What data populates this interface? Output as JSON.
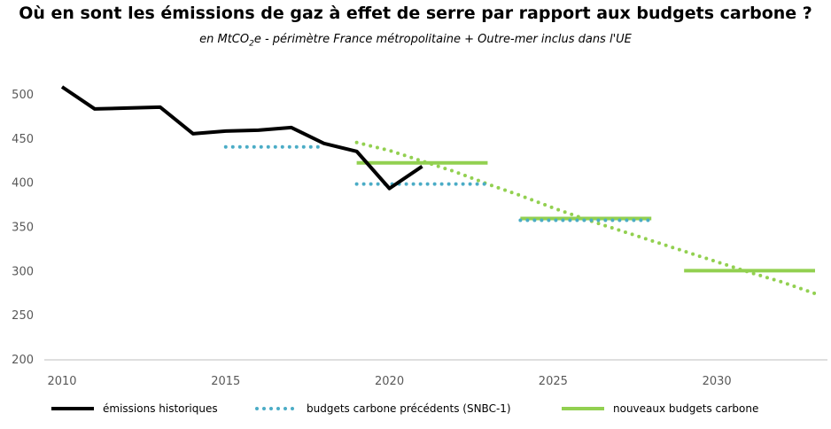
{
  "chart_data": {
    "type": "line",
    "title": "Où en sont les émissions de gaz à effet de serre par rapport aux budgets carbone ?",
    "subtitle_parts": [
      "en MtCO",
      "2",
      "e - périmètre France métropolitaine + Outre-mer inclus dans l'UE"
    ],
    "xlabel": "",
    "ylabel": "",
    "xlim": [
      2010,
      2033
    ],
    "ylim": [
      200,
      510
    ],
    "x_ticks": [
      2010,
      2015,
      2020,
      2025,
      2030
    ],
    "y_ticks": [
      200,
      250,
      300,
      350,
      400,
      450,
      500
    ],
    "grid": false,
    "legend_position": "bottom",
    "series": [
      {
        "name": "émissions historiques",
        "style": "solid",
        "color": "#000000",
        "x": [
          2010,
          2011,
          2012,
          2013,
          2014,
          2015,
          2016,
          2017,
          2018,
          2019,
          2020,
          2021
        ],
        "y": [
          508,
          483,
          484,
          485,
          455,
          458,
          459,
          462,
          444,
          435,
          393,
          418
        ]
      },
      {
        "name": "budgets carbone précédents (SNBC-1)",
        "style": "dotted",
        "color": "#4BACC6",
        "segments": [
          {
            "x": [
              2015,
              2018
            ],
            "y": [
              440,
              440
            ]
          },
          {
            "x": [
              2019,
              2023
            ],
            "y": [
              398,
              398
            ]
          },
          {
            "x": [
              2024,
              2028
            ],
            "y": [
              357,
              357
            ]
          }
        ]
      },
      {
        "name": "nouveaux budgets carbone",
        "style": "solid",
        "color": "#92D050",
        "segments": [
          {
            "x": [
              2019,
              2023
            ],
            "y": [
              422,
              422
            ]
          },
          {
            "x": [
              2024,
              2028
            ],
            "y": [
              359,
              359
            ]
          },
          {
            "x": [
              2029,
              2033
            ],
            "y": [
              300,
              300
            ]
          }
        ]
      },
      {
        "name": "",
        "style": "dotted",
        "color": "#92D050",
        "x": [
          2019,
          2020,
          2021,
          2022,
          2023,
          2024,
          2025,
          2026,
          2027,
          2028,
          2029,
          2030,
          2031,
          2032,
          2033
        ],
        "y": [
          445,
          436,
          424,
          412,
          398,
          385,
          371,
          358,
          346,
          334,
          322,
          310,
          298,
          287,
          274
        ]
      }
    ]
  },
  "legend": {
    "items": [
      {
        "label": "émissions historiques",
        "color": "#000000",
        "style": "solid"
      },
      {
        "label": "budgets carbone précédents (SNBC-1)",
        "color": "#4BACC6",
        "style": "dotted"
      },
      {
        "label": "nouveaux budgets carbone",
        "color": "#92D050",
        "style": "solid"
      }
    ]
  }
}
